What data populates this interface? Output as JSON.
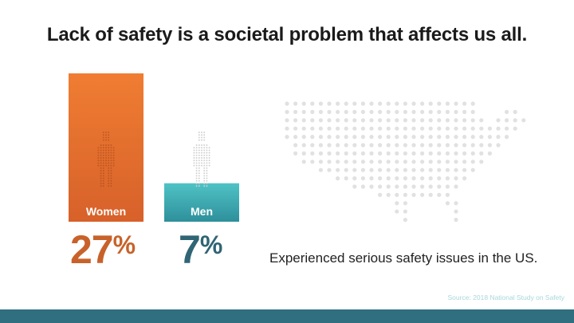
{
  "title": "Lack of safety is a societal problem that affects us all.",
  "chart_data": {
    "type": "bar",
    "categories": [
      "Women",
      "Men"
    ],
    "values": [
      27,
      7
    ],
    "value_suffix": "%",
    "colors": [
      "#ed7531",
      "#3aaab1"
    ],
    "pct_colors": [
      "#c8622a",
      "#2f6574"
    ],
    "ylim": [
      0,
      27
    ],
    "caption": "Experienced serious safety issues in the US."
  },
  "percentages": [
    {
      "num": "27",
      "sign": "%"
    },
    {
      "num": "7",
      "sign": "%"
    }
  ],
  "source": "Source: 2018 National Study on Safety",
  "colors": {
    "footer_bar": "#2f6f80",
    "map_dot": "#e1e1e1",
    "person_dot": "#c9c9c9"
  }
}
